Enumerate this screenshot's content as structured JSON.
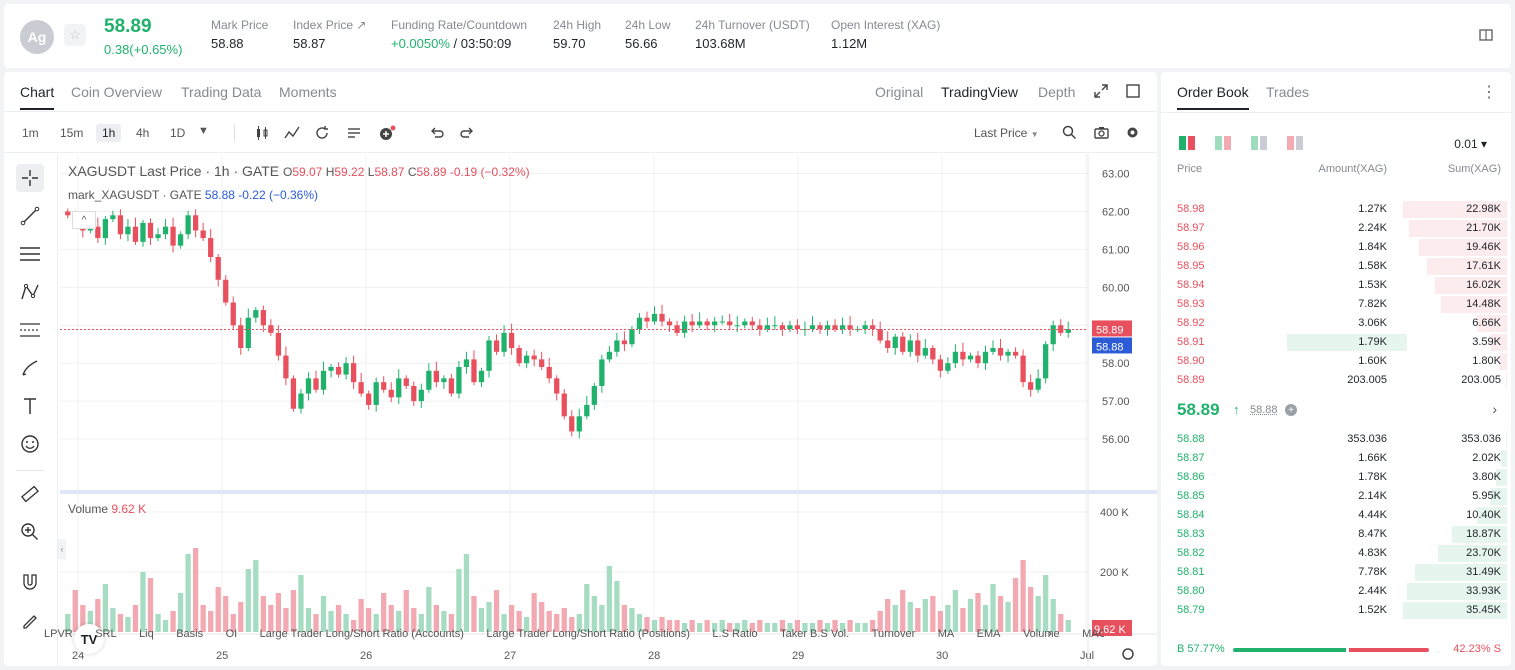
{
  "header": {
    "coin_avatar": "Ag",
    "star_icon": "star-icon",
    "last_price": "58.89",
    "change": "0.38(+0.65%)",
    "stats": [
      {
        "label": "Mark Price",
        "value": "58.88"
      },
      {
        "label": "Index Price ↗",
        "value": "58.87"
      },
      {
        "label": "Funding Rate/Countdown",
        "value_green": "+0.0050%",
        "value": " / 03:50:09"
      },
      {
        "label": "24h High",
        "value": "59.70"
      },
      {
        "label": "24h Low",
        "value": "56.66"
      },
      {
        "label": "24h Turnover (USDT)",
        "value": "103.68M"
      },
      {
        "label": "Open Interest (XAG)",
        "value": "1.12M"
      }
    ],
    "colors": {
      "up": "#20b26c",
      "down": "#e8505e"
    }
  },
  "chart_panel": {
    "tabs": [
      "Chart",
      "Coin Overview",
      "Trading Data",
      "Moments"
    ],
    "view_tabs": [
      "Original",
      "TradingView",
      "Depth"
    ],
    "timeframes": [
      "1m",
      "15m",
      "1h",
      "4h",
      "1D"
    ],
    "active_timeframe": "1h",
    "price_type": "Last Price",
    "legend": {
      "symbol": "XAGUSDT Last Price · 1h · GATE",
      "o_label": "O",
      "o": "59.07",
      "h_label": "H",
      "h": "59.22",
      "l_label": "L",
      "l": "58.87",
      "c_label": "C",
      "c": "58.89",
      "chg": "-0.19 (−0.32%)",
      "mark_symbol": "mark_XAGUSDT · GATE",
      "mark_value": "58.88",
      "mark_chg": "-0.22 (−0.36%)",
      "collapse": "^"
    },
    "volume_label": "Volume",
    "volume_value": "9.62 K",
    "indicators": [
      "LPVR",
      "SRL",
      "Liq",
      "Basis",
      "OI",
      "Large Trader Long/Short Ratio (Accounts)",
      "Large Trader Long/Short Ratio (Positions)",
      "L.S Ratio",
      "Taker B.S Vol.",
      "Turnover",
      "MA",
      "EMA",
      "Volume",
      "MACD"
    ]
  },
  "chart_data": {
    "type": "candlestick",
    "price_axis": [
      "63.00",
      "62.00",
      "61.00",
      "60.00",
      "59.00",
      "58.00",
      "57.00",
      "56.00"
    ],
    "volume_axis": [
      "400 K",
      "200 K"
    ],
    "x_labels": [
      "24",
      "25",
      "26",
      "27",
      "28",
      "29",
      "30",
      "Jul"
    ],
    "last_price_tag": "58.89",
    "mark_price_tag": "58.88",
    "volume_tag": "9.62 K",
    "ylim": [
      55.5,
      63.2
    ],
    "close_path": [
      61.9,
      61.7,
      61.5,
      61.6,
      61.3,
      61.8,
      61.9,
      61.4,
      61.6,
      61.2,
      61.7,
      61.3,
      61.4,
      61.6,
      61.1,
      61.4,
      61.9,
      61.5,
      61.3,
      60.8,
      60.2,
      59.6,
      59.0,
      58.4,
      59.2,
      59.4,
      59.0,
      58.8,
      58.2,
      57.6,
      56.8,
      57.2,
      57.6,
      57.3,
      57.8,
      57.9,
      57.7,
      58.0,
      57.5,
      57.2,
      56.9,
      57.5,
      57.3,
      57.1,
      57.6,
      57.4,
      57.0,
      57.3,
      57.8,
      57.5,
      57.6,
      57.2,
      57.9,
      58.1,
      57.5,
      57.8,
      58.6,
      58.3,
      58.8,
      58.4,
      58.0,
      58.2,
      58.1,
      57.9,
      57.6,
      57.2,
      56.6,
      56.2,
      56.6,
      56.9,
      57.4,
      58.1,
      58.3,
      58.6,
      58.5,
      58.9,
      59.2,
      59.1,
      59.3,
      59.1,
      59.0,
      58.8,
      59.1,
      59.0,
      59.1,
      59.0,
      59.1,
      59.1,
      59.0,
      59.0,
      59.1,
      59.0,
      58.9,
      59.0,
      59.0,
      58.9,
      59.0,
      58.9,
      58.9,
      59.0,
      58.9,
      59.0,
      58.9,
      59.0,
      58.9,
      58.9,
      59.0,
      58.9,
      58.6,
      58.4,
      58.7,
      58.3,
      58.6,
      58.2,
      58.4,
      58.1,
      57.8,
      58.0,
      58.3,
      58.1,
      58.2,
      58.0,
      58.3,
      58.4,
      58.2,
      58.3,
      58.2,
      57.5,
      57.3,
      57.6,
      58.5,
      59.0,
      58.8,
      58.9
    ],
    "volume_path": [
      60,
      140,
      90,
      70,
      110,
      160,
      80,
      60,
      50,
      90,
      200,
      180,
      60,
      40,
      70,
      130,
      260,
      280,
      90,
      70,
      150,
      120,
      60,
      100,
      210,
      240,
      120,
      90,
      130,
      80,
      140,
      190,
      80,
      60,
      120,
      70,
      90,
      60,
      40,
      110,
      80,
      60,
      130,
      90,
      70,
      140,
      80,
      60,
      150,
      90,
      70,
      60,
      210,
      260,
      120,
      80,
      100,
      140,
      60,
      90,
      70,
      50,
      130,
      100,
      70,
      60,
      80,
      50,
      60,
      160,
      120,
      90,
      220,
      170,
      90,
      80,
      60,
      50,
      40,
      50,
      40,
      40,
      30,
      40,
      30,
      40,
      30,
      40,
      30,
      30,
      40,
      30,
      40,
      30,
      30,
      40,
      30,
      40,
      30,
      30,
      40,
      30,
      40,
      30,
      40,
      30,
      30,
      40,
      70,
      110,
      90,
      140,
      100,
      80,
      110,
      120,
      70,
      90,
      140,
      80,
      110,
      130,
      90,
      160,
      120,
      100,
      180,
      240,
      150,
      120,
      190,
      110,
      60,
      40
    ]
  },
  "order_book": {
    "tabs": [
      "Order Book",
      "Trades"
    ],
    "precision": "0.01 ▾",
    "col_price": "Price",
    "col_amount": "Amount(XAG)",
    "col_sum": "Sum(XAG)",
    "asks": [
      {
        "price": "58.98",
        "amount": "1.27K",
        "sum": "22.98K",
        "d": 1.0
      },
      {
        "price": "58.97",
        "amount": "2.24K",
        "sum": "21.70K",
        "d": 0.944
      },
      {
        "price": "58.96",
        "amount": "1.84K",
        "sum": "19.46K",
        "d": 0.847
      },
      {
        "price": "58.95",
        "amount": "1.58K",
        "sum": "17.61K",
        "d": 0.766
      },
      {
        "price": "58.94",
        "amount": "1.53K",
        "sum": "16.02K",
        "d": 0.697
      },
      {
        "price": "58.93",
        "amount": "7.82K",
        "sum": "14.48K",
        "d": 0.63
      },
      {
        "price": "58.92",
        "amount": "3.06K",
        "sum": "6.66K",
        "d": 0.29
      },
      {
        "price": "58.91",
        "amount": "1.79K",
        "sum": "3.59K",
        "d": 0.156,
        "hl": true
      },
      {
        "price": "58.90",
        "amount": "1.60K",
        "sum": "1.80K",
        "d": 0.078
      },
      {
        "price": "58.89",
        "amount": "203.005",
        "sum": "203.005",
        "d": 0.009
      }
    ],
    "mid": {
      "price": "58.89",
      "arrow": "↑",
      "mark": "58.88",
      "info": "+"
    },
    "bids": [
      {
        "price": "58.88",
        "amount": "353.036",
        "sum": "353.036",
        "d": 0.01
      },
      {
        "price": "58.87",
        "amount": "1.66K",
        "sum": "2.02K",
        "d": 0.057
      },
      {
        "price": "58.86",
        "amount": "1.78K",
        "sum": "3.80K",
        "d": 0.107
      },
      {
        "price": "58.85",
        "amount": "2.14K",
        "sum": "5.95K",
        "d": 0.168
      },
      {
        "price": "58.84",
        "amount": "4.44K",
        "sum": "10.40K",
        "d": 0.293
      },
      {
        "price": "58.83",
        "amount": "8.47K",
        "sum": "18.87K",
        "d": 0.532
      },
      {
        "price": "58.82",
        "amount": "4.83K",
        "sum": "23.70K",
        "d": 0.668
      },
      {
        "price": "58.81",
        "amount": "7.78K",
        "sum": "31.49K",
        "d": 0.888
      },
      {
        "price": "58.80",
        "amount": "2.44K",
        "sum": "33.93K",
        "d": 0.957
      },
      {
        "price": "58.79",
        "amount": "1.52K",
        "sum": "35.45K",
        "d": 1.0
      }
    ],
    "buy_ratio_label": "B 57.77%",
    "sell_ratio_label": "42.23% S",
    "buy_ratio": 57.77
  }
}
